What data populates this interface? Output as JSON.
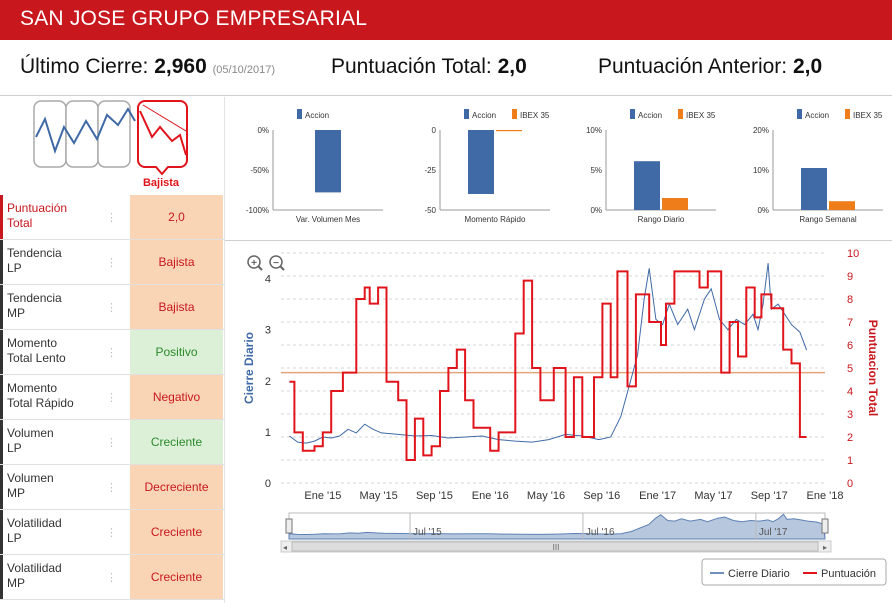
{
  "header": {
    "title": "SAN JOSE GRUPO EMPRESARIAL"
  },
  "kpis": {
    "ultimo_label": "Último Cierre:",
    "ultimo_value": "2,960",
    "ultimo_date": "(05/10/2017)",
    "total_label": "Puntuación Total:",
    "total_value": "2,0",
    "anterior_label": "Puntuación Anterior:",
    "anterior_value": "2,0"
  },
  "spark": {
    "label": "Bajista"
  },
  "table": {
    "rows": [
      {
        "label1": "Puntuación",
        "label2": "Total",
        "value": "2,0",
        "style": "orange",
        "red": true
      },
      {
        "label1": "Tendencia",
        "label2": "LP",
        "value": "Bajista",
        "style": "orange"
      },
      {
        "label1": "Tendencia",
        "label2": "MP",
        "value": "Bajista",
        "style": "orange"
      },
      {
        "label1": "Momento",
        "label2": "Total Lento",
        "value": "Positivo",
        "style": "green"
      },
      {
        "label1": "Momento",
        "label2": "Total Rápido",
        "value": "Negativo",
        "style": "orange"
      },
      {
        "label1": "Volumen",
        "label2": "LP",
        "value": "Creciente",
        "style": "green"
      },
      {
        "label1": "Volumen",
        "label2": "MP",
        "value": "Decreciente",
        "style": "orange"
      },
      {
        "label1": "Volatilidad",
        "label2": "LP",
        "value": "Creciente",
        "style": "orange"
      },
      {
        "label1": "Volatilidad",
        "label2": "MP",
        "value": "Creciente",
        "style": "orange"
      }
    ]
  },
  "colors": {
    "red": "#c8171d",
    "accion": "#3f6aa6",
    "ibex": "#ef7d1a",
    "orange_bg": "#f9d5b6",
    "green_bg": "#dcf0d8",
    "line": "#e5a57a"
  },
  "chart_data": [
    {
      "type": "bar",
      "categories": [
        "Var. Volumen Mes"
      ],
      "series": [
        {
          "name": "Accion",
          "values": [
            -78
          ]
        }
      ],
      "ylim": [
        -100,
        0
      ],
      "yticks": [
        "0%",
        "-50%",
        "-100%"
      ],
      "yvals": [
        0,
        -50,
        -100
      ]
    },
    {
      "type": "bar",
      "categories": [
        "Momento Rápido"
      ],
      "series": [
        {
          "name": "Accion",
          "values": [
            -40
          ]
        },
        {
          "name": "IBEX 35",
          "values": [
            -0.5
          ]
        }
      ],
      "ylim": [
        -50,
        0
      ],
      "yticks": [
        "0",
        "-25",
        "-50"
      ],
      "yvals": [
        0,
        -25,
        -50
      ]
    },
    {
      "type": "bar",
      "categories": [
        "Rango Diario"
      ],
      "series": [
        {
          "name": "Accion",
          "values": [
            6.1
          ]
        },
        {
          "name": "IBEX 35",
          "values": [
            1.5
          ]
        }
      ],
      "ylim": [
        0,
        10
      ],
      "yticks": [
        "10%",
        "5%",
        "0%"
      ],
      "yvals": [
        10,
        5,
        0
      ]
    },
    {
      "type": "bar",
      "categories": [
        "Rango Semanal"
      ],
      "series": [
        {
          "name": "Accion",
          "values": [
            10.5
          ]
        },
        {
          "name": "IBEX 35",
          "values": [
            2.2
          ]
        }
      ],
      "ylim": [
        0,
        20
      ],
      "yticks": [
        "20%",
        "10%",
        "0%"
      ],
      "yvals": [
        20,
        10,
        0
      ]
    },
    {
      "type": "line",
      "ylabel": "Cierre Diario",
      "ylabel2": "Puntuacion Total",
      "xticks": [
        "Ene '15",
        "May '15",
        "Sep '15",
        "Ene '16",
        "May '16",
        "Sep '16",
        "Ene '17",
        "May '17",
        "Sep '17",
        "Ene '18"
      ],
      "navticks": [
        "Jul '15",
        "Jul '16",
        "Jul '17"
      ],
      "navbar": "III",
      "xlim": [
        2014.75,
        2018.0
      ],
      "ylim": [
        0,
        4.5
      ],
      "yticks": [
        0,
        1,
        2,
        3,
        4
      ],
      "ylim2": [
        0,
        10
      ],
      "yticks2": [
        0,
        1,
        2,
        3,
        4,
        5,
        6,
        7,
        8,
        9,
        10
      ],
      "ref_line": 4.8,
      "series": [
        {
          "name": "Cierre Diario",
          "axis": "left",
          "points": [
            [
              2014.8,
              0.92
            ],
            [
              2014.85,
              0.8
            ],
            [
              2014.9,
              0.78
            ],
            [
              2014.95,
              0.82
            ],
            [
              2015.0,
              0.9
            ],
            [
              2015.05,
              0.88
            ],
            [
              2015.1,
              0.92
            ],
            [
              2015.15,
              1.05
            ],
            [
              2015.2,
              0.98
            ],
            [
              2015.25,
              1.15
            ],
            [
              2015.3,
              1.05
            ],
            [
              2015.35,
              0.98
            ],
            [
              2015.45,
              0.95
            ],
            [
              2015.55,
              0.92
            ],
            [
              2015.65,
              0.93
            ],
            [
              2015.75,
              0.88
            ],
            [
              2015.85,
              0.9
            ],
            [
              2015.95,
              0.92
            ],
            [
              2016.05,
              0.85
            ],
            [
              2016.15,
              0.82
            ],
            [
              2016.25,
              0.8
            ],
            [
              2016.35,
              0.85
            ],
            [
              2016.45,
              0.95
            ],
            [
              2016.55,
              0.92
            ],
            [
              2016.65,
              0.85
            ],
            [
              2016.72,
              0.9
            ],
            [
              2016.78,
              1.3
            ],
            [
              2016.83,
              1.9
            ],
            [
              2016.88,
              2.5
            ],
            [
              2016.92,
              3.6
            ],
            [
              2016.95,
              4.2
            ],
            [
              2016.99,
              3.2
            ],
            [
              2017.03,
              3.1
            ],
            [
              2017.07,
              3.5
            ],
            [
              2017.12,
              3.1
            ],
            [
              2017.18,
              3.4
            ],
            [
              2017.22,
              3.0
            ],
            [
              2017.28,
              3.6
            ],
            [
              2017.32,
              3.8
            ],
            [
              2017.37,
              3.2
            ],
            [
              2017.42,
              3.0
            ],
            [
              2017.47,
              3.2
            ],
            [
              2017.52,
              3.1
            ],
            [
              2017.57,
              3.3
            ],
            [
              2017.6,
              3.0
            ],
            [
              2017.63,
              3.5
            ],
            [
              2017.66,
              4.3
            ],
            [
              2017.68,
              3.4
            ],
            [
              2017.72,
              3.5
            ],
            [
              2017.76,
              3.3
            ],
            [
              2017.8,
              3.1
            ],
            [
              2017.85,
              2.95
            ],
            [
              2017.89,
              2.6
            ]
          ]
        },
        {
          "name": "Puntuación",
          "axis": "right",
          "points": [
            [
              2014.8,
              4.4
            ],
            [
              2014.83,
              4.4
            ],
            [
              2014.83,
              2.2
            ],
            [
              2014.88,
              2.2
            ],
            [
              2014.88,
              1.4
            ],
            [
              2014.95,
              1.4
            ],
            [
              2014.95,
              1.6
            ],
            [
              2015.0,
              1.6
            ],
            [
              2015.0,
              2.2
            ],
            [
              2015.05,
              2.2
            ],
            [
              2015.05,
              4.0
            ],
            [
              2015.12,
              4.0
            ],
            [
              2015.12,
              4.8
            ],
            [
              2015.2,
              4.8
            ],
            [
              2015.2,
              8.0
            ],
            [
              2015.25,
              8.0
            ],
            [
              2015.25,
              8.5
            ],
            [
              2015.28,
              8.5
            ],
            [
              2015.28,
              7.8
            ],
            [
              2015.33,
              7.8
            ],
            [
              2015.33,
              8.5
            ],
            [
              2015.38,
              8.5
            ],
            [
              2015.38,
              4.4
            ],
            [
              2015.45,
              4.4
            ],
            [
              2015.45,
              3.6
            ],
            [
              2015.5,
              3.6
            ],
            [
              2015.5,
              1.0
            ],
            [
              2015.55,
              1.0
            ],
            [
              2015.55,
              2.8
            ],
            [
              2015.6,
              2.8
            ],
            [
              2015.6,
              1.2
            ],
            [
              2015.65,
              1.2
            ],
            [
              2015.65,
              1.6
            ],
            [
              2015.7,
              1.6
            ],
            [
              2015.7,
              4.0
            ],
            [
              2015.75,
              4.0
            ],
            [
              2015.75,
              5.0
            ],
            [
              2015.8,
              5.0
            ],
            [
              2015.8,
              5.8
            ],
            [
              2015.85,
              5.8
            ],
            [
              2015.85,
              3.6
            ],
            [
              2015.9,
              3.6
            ],
            [
              2015.9,
              2.4
            ],
            [
              2016.0,
              2.4
            ],
            [
              2016.0,
              1.4
            ],
            [
              2016.05,
              1.4
            ],
            [
              2016.05,
              2.2
            ],
            [
              2016.15,
              2.2
            ],
            [
              2016.15,
              6.5
            ],
            [
              2016.2,
              6.5
            ],
            [
              2016.2,
              8.8
            ],
            [
              2016.25,
              8.8
            ],
            [
              2016.25,
              5.0
            ],
            [
              2016.3,
              5.0
            ],
            [
              2016.3,
              3.6
            ],
            [
              2016.38,
              3.6
            ],
            [
              2016.38,
              5.0
            ],
            [
              2016.45,
              5.0
            ],
            [
              2016.45,
              2.0
            ],
            [
              2016.5,
              2.0
            ],
            [
              2016.5,
              4.6
            ],
            [
              2016.55,
              4.6
            ],
            [
              2016.55,
              2.0
            ],
            [
              2016.62,
              2.0
            ],
            [
              2016.62,
              4.6
            ],
            [
              2016.67,
              4.6
            ],
            [
              2016.67,
              7.8
            ],
            [
              2016.72,
              7.8
            ],
            [
              2016.72,
              4.6
            ],
            [
              2016.76,
              4.6
            ],
            [
              2016.76,
              9.2
            ],
            [
              2016.82,
              9.2
            ],
            [
              2016.82,
              4.2
            ],
            [
              2016.87,
              4.2
            ],
            [
              2016.87,
              8.2
            ],
            [
              2016.95,
              8.2
            ],
            [
              2016.95,
              7.0
            ],
            [
              2017.02,
              7.0
            ],
            [
              2017.02,
              6.0
            ],
            [
              2017.05,
              6.0
            ],
            [
              2017.05,
              7.8
            ],
            [
              2017.1,
              7.8
            ],
            [
              2017.1,
              9.2
            ],
            [
              2017.25,
              9.2
            ],
            [
              2017.25,
              8.5
            ],
            [
              2017.3,
              8.5
            ],
            [
              2017.3,
              9.2
            ],
            [
              2017.38,
              9.2
            ],
            [
              2017.38,
              4.8
            ],
            [
              2017.43,
              4.8
            ],
            [
              2017.43,
              7.0
            ],
            [
              2017.48,
              7.0
            ],
            [
              2017.48,
              5.5
            ],
            [
              2017.53,
              5.5
            ],
            [
              2017.53,
              8.5
            ],
            [
              2017.58,
              8.5
            ],
            [
              2017.58,
              7.2
            ],
            [
              2017.62,
              7.2
            ],
            [
              2017.62,
              8.2
            ],
            [
              2017.68,
              8.2
            ],
            [
              2017.68,
              7.6
            ],
            [
              2017.75,
              7.6
            ],
            [
              2017.75,
              5.8
            ],
            [
              2017.8,
              5.8
            ],
            [
              2017.8,
              5.2
            ],
            [
              2017.85,
              5.2
            ],
            [
              2017.85,
              2.0
            ],
            [
              2017.89,
              2.0
            ]
          ]
        }
      ]
    }
  ]
}
